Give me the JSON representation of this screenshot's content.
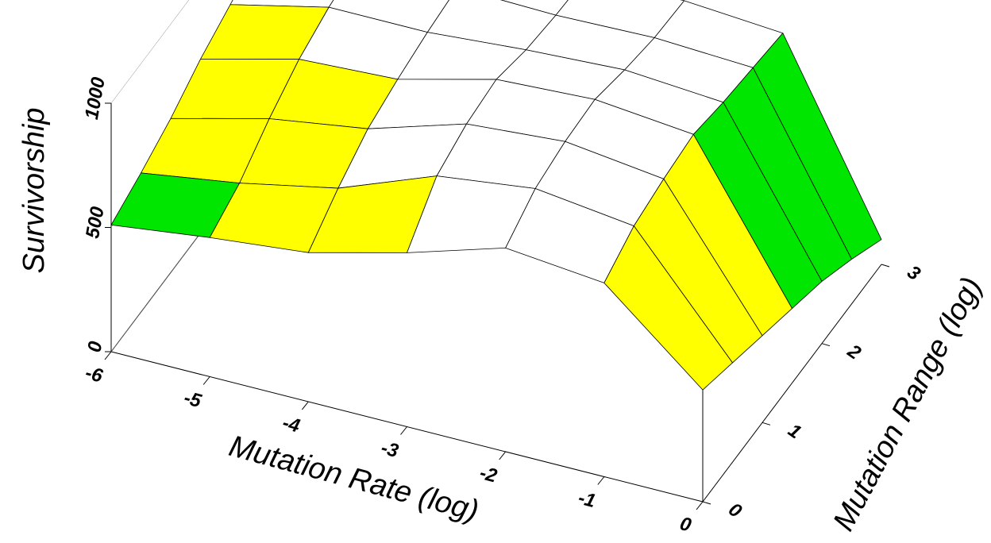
{
  "chart_data": {
    "type": "surface",
    "x_label": "Mutation Rate (log)",
    "y_label": "Mutation Range (log)",
    "z_label": "Survivorship",
    "x": [
      -6,
      -5,
      -4,
      -3,
      -2,
      -1,
      0
    ],
    "y": [
      0,
      0.5,
      1,
      1.5,
      2,
      2.5,
      3
    ],
    "z": [
      [
        510,
        560,
        600,
        700,
        820,
        780,
        450
      ],
      [
        560,
        620,
        700,
        850,
        900,
        850,
        400
      ],
      [
        620,
        720,
        780,
        900,
        930,
        880,
        350
      ],
      [
        700,
        800,
        820,
        920,
        940,
        900,
        300
      ],
      [
        760,
        850,
        850,
        880,
        900,
        870,
        250
      ],
      [
        820,
        880,
        870,
        860,
        870,
        850,
        180
      ],
      [
        860,
        900,
        880,
        850,
        860,
        830,
        100
      ]
    ],
    "xlim": [
      -6,
      0
    ],
    "ylim": [
      0,
      3
    ],
    "zlim": [
      0,
      1000
    ],
    "xticks": [
      -6,
      -5,
      -4,
      -3,
      -2,
      -1,
      0
    ],
    "yticks": [
      0,
      1,
      2,
      3
    ],
    "zticks": [
      0,
      500,
      1000
    ],
    "colors": [
      "#990000",
      "#999900",
      "#00e600",
      "#ffff00",
      "#ffffff"
    ],
    "color_breaks": [
      200,
      400,
      600,
      800
    ]
  }
}
